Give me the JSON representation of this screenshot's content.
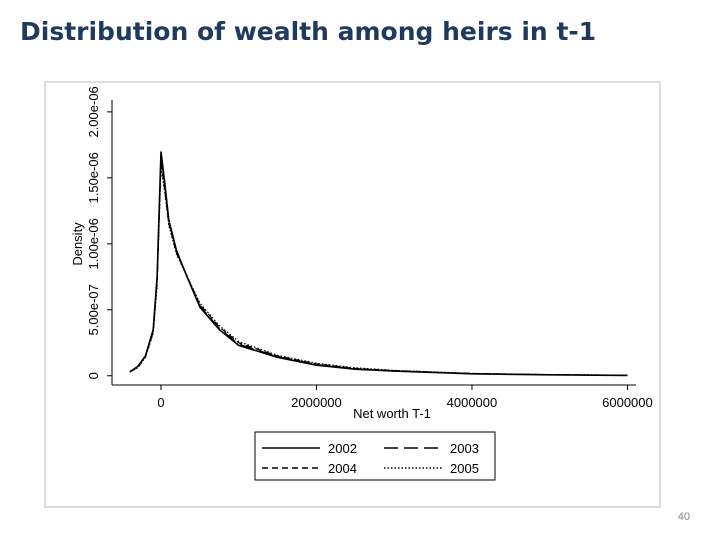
{
  "page": {
    "title": "Distribution of wealth among heirs in t-1",
    "number": "40"
  },
  "chart_data": {
    "type": "line",
    "x_label": "Net worth T-1",
    "y_label": "Density",
    "x": [
      -400000,
      -300000,
      -200000,
      -100000,
      -50000,
      0,
      50000,
      100000,
      200000,
      300000,
      500000,
      750000,
      1000000,
      1500000,
      2000000,
      2500000,
      3000000,
      4000000,
      5000000,
      6000000
    ],
    "series": [
      {
        "name": "2002",
        "color": "#000000",
        "style": "solid",
        "values": [
          3e-08,
          7e-08,
          1.5e-07,
          3.5e-07,
          7.5e-07,
          1.7e-06,
          1.45e-06,
          1.18e-06,
          9.5e-07,
          8e-07,
          5.2e-07,
          3.5e-07,
          2.3e-07,
          1.4e-07,
          8e-08,
          5e-08,
          3.5e-08,
          1.5e-08,
          7e-09,
          3e-09
        ]
      },
      {
        "name": "2003",
        "color": "#000000",
        "style": "longdash",
        "values": [
          3e-08,
          7e-08,
          1.5e-07,
          3.4e-07,
          7.3e-07,
          1.68e-06,
          1.43e-06,
          1.17e-06,
          9.4e-07,
          8e-07,
          5.3e-07,
          3.6e-07,
          2.4e-07,
          1.45e-07,
          8.5e-08,
          5.3e-08,
          3.7e-08,
          1.6e-08,
          8e-09,
          3e-09
        ]
      },
      {
        "name": "2004",
        "color": "#000000",
        "style": "dash",
        "values": [
          3e-08,
          6e-08,
          1.4e-07,
          3.3e-07,
          7e-07,
          1.62e-06,
          1.4e-06,
          1.15e-06,
          9.3e-07,
          8e-07,
          5.4e-07,
          3.7e-07,
          2.5e-07,
          1.5e-07,
          9e-08,
          5.6e-08,
          3.9e-08,
          1.7e-08,
          8e-09,
          4e-09
        ]
      },
      {
        "name": "2005",
        "color": "#000000",
        "style": "dot",
        "values": [
          3e-08,
          6e-08,
          1.4e-07,
          3.2e-07,
          6.8e-07,
          1.58e-06,
          1.38e-06,
          1.14e-06,
          9.2e-07,
          8e-07,
          5.5e-07,
          3.8e-07,
          2.6e-07,
          1.55e-07,
          9.5e-08,
          6e-08,
          4.1e-08,
          1.8e-08,
          9e-09,
          4e-09
        ]
      }
    ],
    "xlim": [
      -630000,
      6110000
    ],
    "xticks": [
      0,
      2000000,
      4000000,
      6000000
    ],
    "ylim": [
      -7e-08,
      2.09e-06
    ],
    "yticks": [
      0,
      {
        "value": 5e-07,
        "label": "5.00e-07"
      },
      {
        "value": 1e-06,
        "label": "1.00e-06"
      },
      {
        "value": 1.5e-06,
        "label": "1.50e-06"
      },
      {
        "value": 2e-06,
        "label": "2.00e-06"
      }
    ]
  }
}
